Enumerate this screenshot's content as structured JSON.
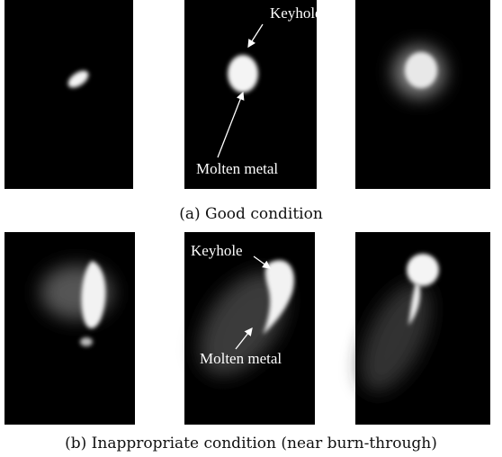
{
  "figure_a": {
    "caption": "(a) Good condition",
    "labels": [
      "Keyhole",
      "Molten metal"
    ]
  },
  "figure_b": {
    "caption": "(b) Inappropriate condition (near burn-through)",
    "labels": [
      "Keyhole",
      "Molten metal"
    ]
  }
}
